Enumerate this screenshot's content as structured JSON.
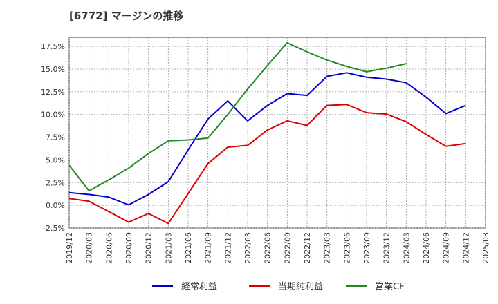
{
  "chart_data": {
    "type": "line",
    "title": "[6772]  マージンの推移",
    "xlabel": "",
    "ylabel": "",
    "x": [
      "2019/12",
      "2020/03",
      "2020/06",
      "2020/09",
      "2020/12",
      "2021/03",
      "2021/06",
      "2021/09",
      "2021/12",
      "2022/03",
      "2022/06",
      "2022/09",
      "2022/12",
      "2023/03",
      "2023/06",
      "2023/09",
      "2023/12",
      "2024/03",
      "2024/06",
      "2024/09",
      "2024/12",
      "2025/03"
    ],
    "ylim": [
      -2.5,
      18.5
    ],
    "yticks": [
      -2.5,
      0.0,
      2.5,
      5.0,
      7.5,
      10.0,
      12.5,
      15.0,
      17.5
    ],
    "ytick_labels": [
      "-2.5%",
      "0.0%",
      "2.5%",
      "5.0%",
      "7.5%",
      "10.0%",
      "12.5%",
      "15.0%",
      "17.5%"
    ],
    "grid": true,
    "legend_position": "bottom",
    "series": [
      {
        "name": "経常利益",
        "color": "#0000cc",
        "values": [
          1.4,
          1.2,
          0.9,
          0.05,
          1.2,
          2.6,
          6.1,
          9.5,
          11.5,
          9.3,
          11.0,
          12.3,
          12.1,
          14.2,
          14.6,
          14.1,
          13.9,
          13.5,
          11.9,
          10.1,
          11.0,
          null
        ]
      },
      {
        "name": "当期純利益",
        "color": "#dd0000",
        "values": [
          0.75,
          0.45,
          -0.7,
          -1.85,
          -0.9,
          -2.0,
          1.3,
          4.6,
          6.4,
          6.6,
          8.3,
          9.3,
          8.8,
          11.0,
          11.1,
          10.2,
          10.05,
          9.2,
          7.8,
          6.5,
          6.8,
          null
        ]
      },
      {
        "name": "営業CF",
        "color": "#228822",
        "values": [
          4.4,
          1.6,
          2.8,
          4.1,
          5.7,
          7.1,
          7.2,
          7.4,
          10.0,
          12.8,
          15.4,
          17.9,
          16.9,
          16.0,
          15.3,
          14.7,
          15.1,
          15.6,
          null,
          null,
          null,
          null
        ]
      }
    ]
  }
}
